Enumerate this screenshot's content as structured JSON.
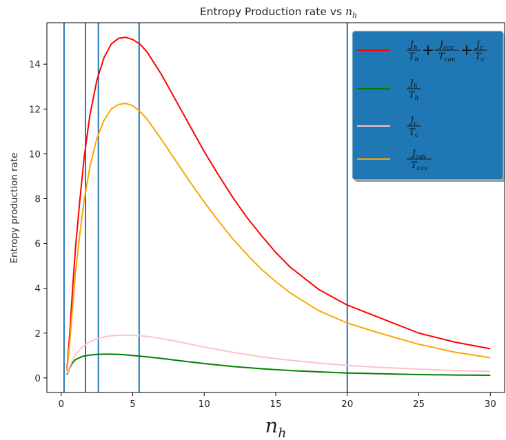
{
  "chart_data": {
    "type": "line",
    "title": "Entropy Production  rate vs",
    "title_var": "n",
    "title_var_sub": "h",
    "xlabel": "n",
    "xlabel_sub": "h",
    "ylabel": "Entropy production rate",
    "xlim": [
      -1.0,
      31.0
    ],
    "ylim": [
      -0.65,
      15.85
    ],
    "xticks": [
      0,
      5,
      10,
      15,
      20,
      25,
      30
    ],
    "yticks": [
      0,
      2,
      4,
      6,
      8,
      10,
      12,
      14
    ],
    "grid": false,
    "legend_position": "top-right",
    "legend_background": "#1f77b4",
    "vlines": {
      "color": "#1f77b4",
      "x": [
        0.2,
        1.7,
        2.6,
        5.45,
        20.0
      ]
    },
    "series": [
      {
        "legend": "Jh/Th + Jcav/Tcav + Jc/Tc",
        "color": "#ff0000",
        "x": [
          0.4,
          0.6,
          0.8,
          1.0,
          1.3,
          1.6,
          2.0,
          2.5,
          3.0,
          3.5,
          4.0,
          4.5,
          5.0,
          5.5,
          6.0,
          7.0,
          8.0,
          9.0,
          10.0,
          11.0,
          12.0,
          13.0,
          14.0,
          15.0,
          16.0,
          18.0,
          20.0,
          22.0,
          25.0,
          27.5,
          30.0
        ],
        "y": [
          0.4,
          2.0,
          4.0,
          5.8,
          7.9,
          9.8,
          11.7,
          13.3,
          14.3,
          14.9,
          15.15,
          15.2,
          15.1,
          14.9,
          14.55,
          13.55,
          12.4,
          11.25,
          10.1,
          9.05,
          8.05,
          7.15,
          6.35,
          5.6,
          4.95,
          3.95,
          3.25,
          2.75,
          2.0,
          1.6,
          1.3
        ]
      },
      {
        "legend": "Jh/Th",
        "color": "#008000",
        "x": [
          0.4,
          0.6,
          0.8,
          1.0,
          1.5,
          2.0,
          2.5,
          3.0,
          3.5,
          4.0,
          4.5,
          5.0,
          6.0,
          7.0,
          8.0,
          10.0,
          12.0,
          14.0,
          16.0,
          18.0,
          20.0,
          22.0,
          25.0,
          27.5,
          30.0
        ],
        "y": [
          0.15,
          0.45,
          0.68,
          0.82,
          0.96,
          1.02,
          1.05,
          1.06,
          1.06,
          1.05,
          1.03,
          1.0,
          0.94,
          0.87,
          0.79,
          0.64,
          0.51,
          0.41,
          0.33,
          0.27,
          0.22,
          0.19,
          0.15,
          0.13,
          0.12
        ]
      },
      {
        "legend": "Jc/Tc",
        "color": "#ffc0cb",
        "x": [
          0.4,
          0.6,
          0.8,
          1.0,
          1.5,
          2.0,
          2.5,
          3.0,
          3.5,
          4.0,
          4.5,
          5.0,
          5.5,
          6.0,
          7.0,
          8.0,
          10.0,
          12.0,
          14.0,
          16.0,
          18.0,
          20.0,
          22.0,
          25.0,
          27.5,
          30.0
        ],
        "y": [
          0.2,
          0.5,
          0.8,
          1.05,
          1.4,
          1.62,
          1.75,
          1.83,
          1.88,
          1.9,
          1.91,
          1.9,
          1.88,
          1.85,
          1.76,
          1.64,
          1.38,
          1.14,
          0.94,
          0.79,
          0.66,
          0.56,
          0.48,
          0.39,
          0.33,
          0.29
        ]
      },
      {
        "legend": "Jcav/Tcav",
        "color": "#ffa500",
        "x": [
          0.4,
          0.6,
          0.8,
          1.0,
          1.3,
          1.6,
          2.0,
          2.5,
          3.0,
          3.5,
          4.0,
          4.5,
          5.0,
          5.5,
          6.0,
          7.0,
          8.0,
          9.0,
          10.0,
          11.0,
          12.0,
          13.0,
          14.0,
          15.0,
          16.0,
          18.0,
          20.0,
          22.0,
          25.0,
          27.5,
          30.0
        ],
        "y": [
          0.3,
          1.6,
          3.2,
          4.7,
          6.4,
          7.9,
          9.4,
          10.7,
          11.5,
          12.0,
          12.2,
          12.25,
          12.15,
          11.9,
          11.55,
          10.65,
          9.7,
          8.75,
          7.85,
          7.0,
          6.2,
          5.5,
          4.85,
          4.3,
          3.8,
          3.0,
          2.45,
          2.05,
          1.5,
          1.15,
          0.9
        ]
      }
    ]
  },
  "legend_math": [
    {
      "terms": [
        {
          "num": "J",
          "num_sub": "h",
          "den": "T",
          "den_sub": "h"
        },
        {
          "op": "+"
        },
        {
          "num": "J",
          "num_sub": "cav",
          "den": "T",
          "den_sub": "cav"
        },
        {
          "op": "+"
        },
        {
          "num": "J",
          "num_sub": "c",
          "den": "T",
          "den_sub": "c"
        }
      ]
    },
    {
      "terms": [
        {
          "num": "J",
          "num_sub": "h",
          "den": "T",
          "den_sub": "h"
        }
      ]
    },
    {
      "terms": [
        {
          "num": "J",
          "num_sub": "c",
          "den": "T",
          "den_sub": "c"
        }
      ]
    },
    {
      "terms": [
        {
          "num": "J",
          "num_sub": "cav",
          "den": "T",
          "den_sub": "cav"
        }
      ]
    }
  ]
}
